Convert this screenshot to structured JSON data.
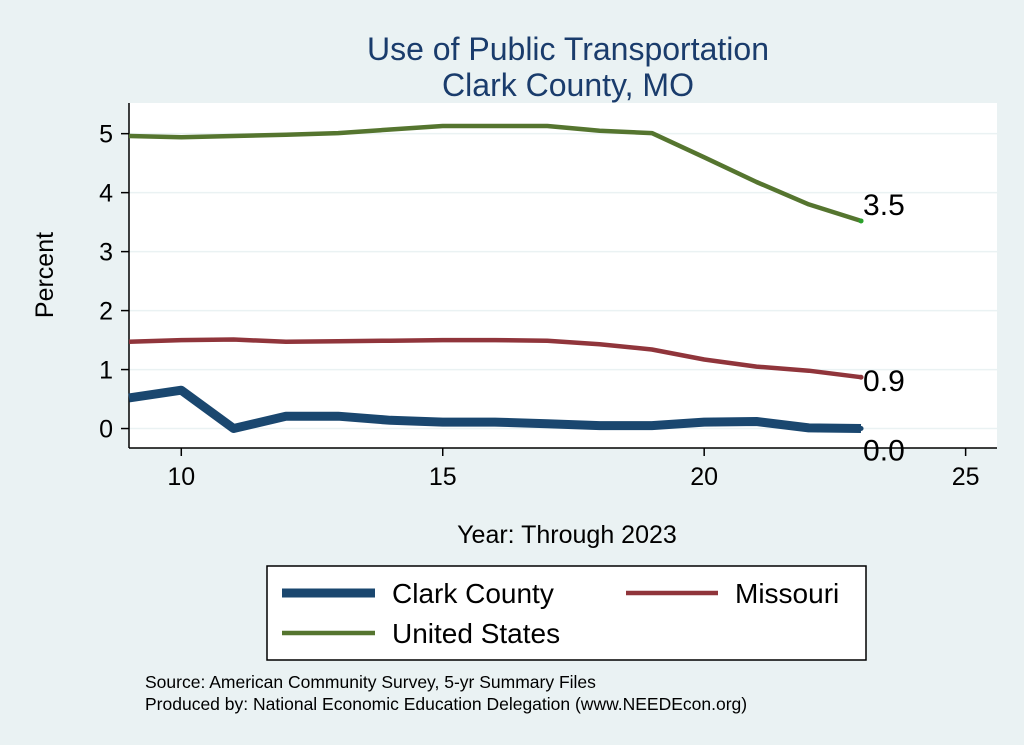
{
  "chart_data": {
    "type": "line",
    "title": "Use of Public Transportation",
    "subtitle": "Clark County, MO",
    "xlabel": "Year: Through 2023",
    "ylabel": "Percent",
    "xlim": [
      9,
      25
    ],
    "ylim": [
      0,
      5
    ],
    "x_ticks": [
      "10",
      "15",
      "20",
      "25"
    ],
    "y_ticks": [
      "0",
      "1",
      "2",
      "3",
      "4",
      "5"
    ],
    "grid": true,
    "legend_position": "bottom",
    "x": [
      9,
      10,
      11,
      12,
      13,
      14,
      15,
      16,
      17,
      18,
      19,
      20,
      21,
      22,
      23
    ],
    "series": [
      {
        "name": "Clark County",
        "color": "#1a476f",
        "values": [
          0.52,
          0.65,
          0.0,
          0.21,
          0.21,
          0.14,
          0.11,
          0.11,
          0.08,
          0.05,
          0.05,
          0.11,
          0.12,
          0.01,
          0.0
        ],
        "end_label": "0.0"
      },
      {
        "name": "Missouri",
        "color": "#90353b",
        "values": [
          1.47,
          1.5,
          1.51,
          1.47,
          1.48,
          1.49,
          1.5,
          1.5,
          1.49,
          1.43,
          1.34,
          1.17,
          1.05,
          0.98,
          0.87
        ],
        "end_label": "0.9"
      },
      {
        "name": "United States",
        "color": "#55752f",
        "values": [
          4.96,
          4.94,
          4.96,
          4.98,
          5.01,
          5.07,
          5.13,
          5.13,
          5.13,
          5.05,
          5.01,
          4.6,
          4.18,
          3.8,
          3.52
        ],
        "end_label": "3.5"
      }
    ]
  },
  "notes": {
    "source": "Source: American Community Survey, 5-yr Summary Files",
    "produced_by": "Produced by: National Economic Education Delegation (www.NEEDEcon.org)"
  }
}
